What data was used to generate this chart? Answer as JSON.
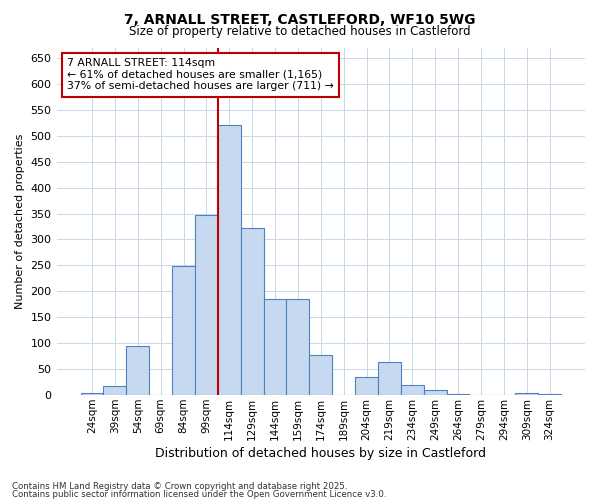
{
  "title_line1": "7, ARNALL STREET, CASTLEFORD, WF10 5WG",
  "title_line2": "Size of property relative to detached houses in Castleford",
  "xlabel": "Distribution of detached houses by size in Castleford",
  "ylabel": "Number of detached properties",
  "categories": [
    "24sqm",
    "39sqm",
    "54sqm",
    "69sqm",
    "84sqm",
    "99sqm",
    "114sqm",
    "129sqm",
    "144sqm",
    "159sqm",
    "174sqm",
    "189sqm",
    "204sqm",
    "219sqm",
    "234sqm",
    "249sqm",
    "264sqm",
    "279sqm",
    "294sqm",
    "309sqm",
    "324sqm"
  ],
  "values": [
    5,
    18,
    95,
    0,
    248,
    347,
    520,
    323,
    185,
    185,
    78,
    0,
    35,
    63,
    20,
    10,
    2,
    0,
    0,
    5,
    2
  ],
  "bar_color": "#c6d9f0",
  "bar_edge_color": "#4f81bd",
  "vline_color": "#c00000",
  "vline_x": 6.0,
  "annotation_text": "7 ARNALL STREET: 114sqm\n← 61% of detached houses are smaller (1,165)\n37% of semi-detached houses are larger (711) →",
  "annotation_box_facecolor": "#ffffff",
  "annotation_box_edgecolor": "#c00000",
  "ylim": [
    0,
    670
  ],
  "yticks": [
    0,
    50,
    100,
    150,
    200,
    250,
    300,
    350,
    400,
    450,
    500,
    550,
    600,
    650
  ],
  "fig_bg_color": "#ffffff",
  "plot_bg_color": "#ffffff",
  "grid_color": "#c8d8e8",
  "footer_line1": "Contains HM Land Registry data © Crown copyright and database right 2025.",
  "footer_line2": "Contains public sector information licensed under the Open Government Licence v3.0."
}
